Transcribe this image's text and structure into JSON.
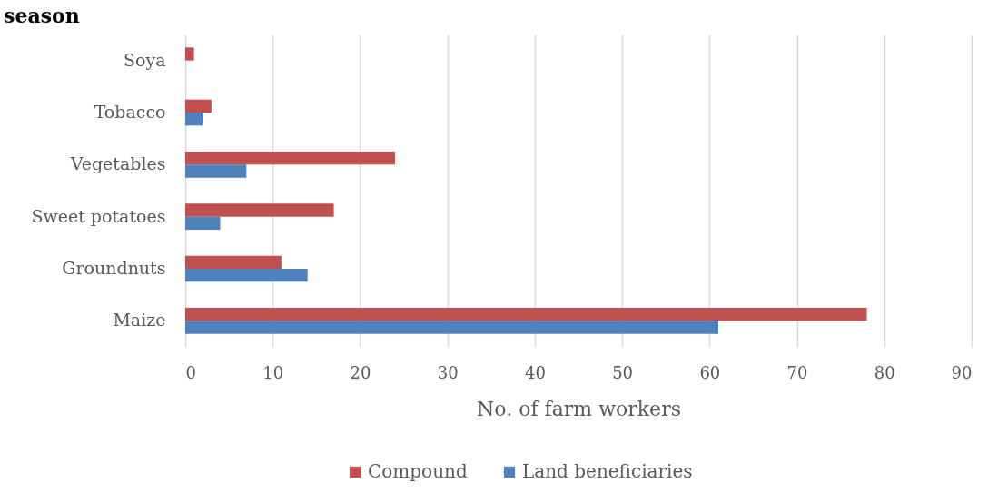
{
  "chart_data": {
    "type": "bar",
    "orientation": "horizontal",
    "title": "season",
    "xlabel": "No. of farm workers",
    "categories": [
      "Soya",
      "Tobacco",
      "Vegetables",
      "Sweet potatoes",
      "Groundnuts",
      "Maize"
    ],
    "series": [
      {
        "name": "Compound",
        "color": "#c0504d",
        "values": [
          1,
          3,
          24,
          17,
          11,
          78
        ]
      },
      {
        "name": "Land beneficiaries",
        "color": "#4f81bd",
        "values": [
          0,
          2,
          7,
          4,
          14,
          61
        ]
      }
    ],
    "xlim": [
      0,
      90
    ],
    "xticks": [
      0,
      10,
      20,
      30,
      40,
      50,
      60,
      70,
      80,
      90
    ],
    "grid": "x",
    "legend": "bottom"
  }
}
